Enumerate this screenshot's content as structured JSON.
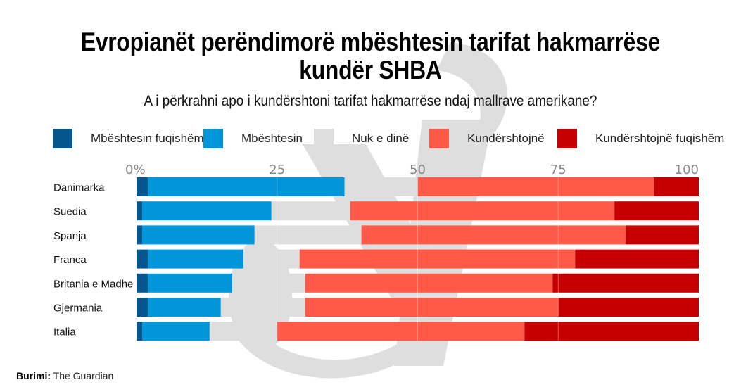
{
  "header": {
    "title_line1": "Evropianët perëndimorë mbështesin tarifat hakmarrëse",
    "title_line2": "kundër SHBA",
    "subtitle": "A i përkrahni apo i kundërshtoni tarifat hakmarrëse ndaj mallrave amerikane?"
  },
  "source": {
    "label": "Burimi:",
    "value": "The Guardian"
  },
  "chart_data": {
    "type": "bar",
    "orientation": "horizontal",
    "stacked": true,
    "title": "Evropianët perëndimorë mbështesin tarifat hakmarrëse kundër SHBA",
    "subtitle": "A i përkrahni apo i kundërshtoni tarifat hakmarrëse ndaj mallrave amerikane?",
    "xlabel": "",
    "ylabel": "",
    "xlim": [
      0,
      100
    ],
    "x_ticks": [
      "0%",
      "25",
      "50",
      "75",
      "100"
    ],
    "x_tick_values": [
      0,
      25,
      50,
      75,
      100
    ],
    "grid": true,
    "legend_position": "top",
    "categories": [
      "Danimarka",
      "Suedia",
      "Spanja",
      "Franca",
      "Britania e Madhe",
      "Gjermania",
      "Italia"
    ],
    "series": [
      {
        "name": "Mbështesin fuqishëm",
        "color": "#04568C",
        "values": [
          2,
          1,
          1,
          2,
          2,
          2,
          1
        ]
      },
      {
        "name": "Mbështesin",
        "color": "#0195DA",
        "values": [
          35,
          23,
          20,
          17,
          15,
          13,
          12
        ]
      },
      {
        "name": "Nuk e dinë",
        "color": "#DEDEDE",
        "values": [
          13,
          14,
          19,
          10,
          13,
          15,
          12
        ]
      },
      {
        "name": "Kundërshtojnë",
        "color": "#FE5A47",
        "values": [
          42,
          47,
          47,
          49,
          44,
          45,
          44
        ]
      },
      {
        "name": "Kundërshtojnë fuqishëm",
        "color": "#C60001",
        "values": [
          8,
          15,
          13,
          22,
          26,
          25,
          31
        ]
      }
    ]
  }
}
